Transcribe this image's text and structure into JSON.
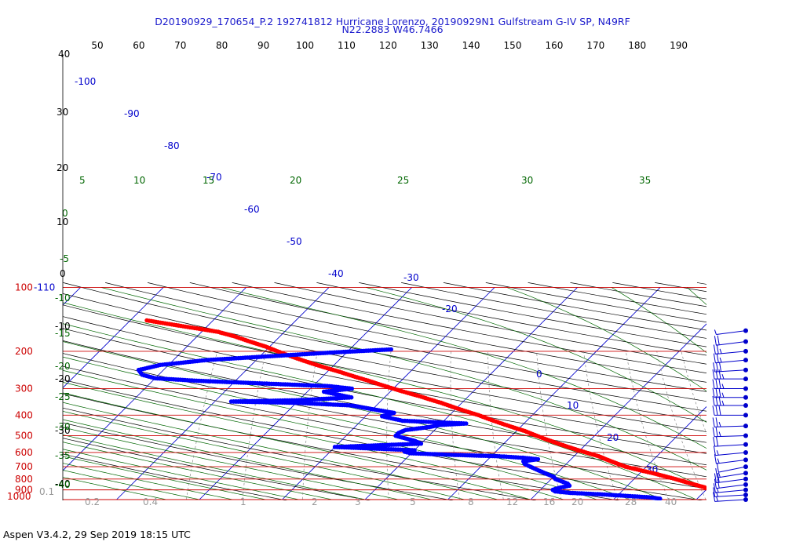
{
  "title_line1": "D20190929_170654_P.2 192741812 Hurricane Lorenzo, 20190929N1 Gulfstream G-IV SP, N49RF",
  "title_line2": "N22.2883 W46.7466",
  "footer": "Aspen V3.4.2, 29 Sep 2019  18:15 UTC",
  "colors": {
    "isobar": "#cc0000",
    "isotherm": "#0000cc",
    "dry_adiabat": "#000000",
    "moist_adiabat": "#006600",
    "mixing_ratio": "#888888",
    "temperature": "#ff0000",
    "dewpoint": "#0000ff",
    "wind": "#0000cc"
  },
  "chart_data": {
    "type": "skew-t log-p",
    "pressure_axis_labels": [
      {
        "p": 100,
        "text": "100"
      },
      {
        "p": 200,
        "text": "200"
      },
      {
        "p": 300,
        "text": "300"
      },
      {
        "p": 400,
        "text": "400"
      },
      {
        "p": 500,
        "text": "500"
      },
      {
        "p": 600,
        "text": "600"
      },
      {
        "p": 700,
        "text": "700"
      },
      {
        "p": 800,
        "text": "800"
      },
      {
        "p": 900,
        "text": "900"
      },
      {
        "p": 1000,
        "text": "1000"
      }
    ],
    "left_temp_labels": [
      "-110",
      "40",
      "30",
      "20",
      "10",
      "0",
      "-10",
      "-20",
      "-30",
      "-40"
    ],
    "top_labels": [
      "50",
      "60",
      "70",
      "80",
      "90",
      "100",
      "110",
      "120",
      "130",
      "140",
      "150",
      "160",
      "170",
      "180",
      "190"
    ],
    "isotherm_labels": [
      "-100",
      "-90",
      "-80",
      "-70",
      "-60",
      "-50",
      "-40",
      "-30",
      "-20",
      "0",
      "10",
      "20",
      "30"
    ],
    "moist_labels_top": [
      "5",
      "10",
      "15",
      "20",
      "25",
      "30",
      "35"
    ],
    "moist_labels_left": [
      "0",
      "-5",
      "-10",
      "-15",
      "-20",
      "-25",
      "-30",
      "-35",
      "-40"
    ],
    "mixing_ratio_labels": [
      "0.1",
      "0.2",
      "0.4",
      "1",
      "2",
      "3",
      "5",
      "8",
      "12",
      "16",
      "20",
      "28",
      "40"
    ],
    "temperature_profile": [
      {
        "p": 1000,
        "t": 27.0
      },
      {
        "p": 990,
        "t": 24.5
      },
      {
        "p": 975,
        "t": 23.5
      },
      {
        "p": 950,
        "t": 23.0
      },
      {
        "p": 925,
        "t": 22.0
      },
      {
        "p": 900,
        "t": 20.5
      },
      {
        "p": 875,
        "t": 19.5
      },
      {
        "p": 850,
        "t": 18.0
      },
      {
        "p": 825,
        "t": 16.5
      },
      {
        "p": 800,
        "t": 15.0
      },
      {
        "p": 775,
        "t": 13.3
      },
      {
        "p": 750,
        "t": 11.5
      },
      {
        "p": 725,
        "t": 9.5
      },
      {
        "p": 700,
        "t": 7.5
      },
      {
        "p": 675,
        "t": 6.0
      },
      {
        "p": 650,
        "t": 4.5
      },
      {
        "p": 625,
        "t": 3.0
      },
      {
        "p": 600,
        "t": 1.0
      },
      {
        "p": 575,
        "t": -1.0
      },
      {
        "p": 550,
        "t": -3.0
      },
      {
        "p": 525,
        "t": -5.0
      },
      {
        "p": 500,
        "t": -7.0
      },
      {
        "p": 475,
        "t": -9.0
      },
      {
        "p": 450,
        "t": -11.5
      },
      {
        "p": 425,
        "t": -14.0
      },
      {
        "p": 400,
        "t": -16.5
      },
      {
        "p": 375,
        "t": -19.5
      },
      {
        "p": 350,
        "t": -22.5
      },
      {
        "p": 325,
        "t": -26.0
      },
      {
        "p": 300,
        "t": -30.0
      },
      {
        "p": 275,
        "t": -34.0
      },
      {
        "p": 250,
        "t": -38.5
      },
      {
        "p": 225,
        "t": -43.5
      },
      {
        "p": 200,
        "t": -48.5
      },
      {
        "p": 190,
        "t": -50.5
      },
      {
        "p": 180,
        "t": -53.0
      },
      {
        "p": 170,
        "t": -55.5
      },
      {
        "p": 162,
        "t": -58.0
      },
      {
        "p": 156,
        "t": -61.0
      },
      {
        "p": 143,
        "t": -68.0
      }
    ],
    "dewpoint_profile": [
      {
        "p": 990,
        "t": 15.5
      },
      {
        "p": 975,
        "t": 14.0
      },
      {
        "p": 960,
        "t": 11.0
      },
      {
        "p": 945,
        "t": 8.0
      },
      {
        "p": 930,
        "t": 4.0
      },
      {
        "p": 915,
        "t": 2.0
      },
      {
        "p": 900,
        "t": 1.5
      },
      {
        "p": 880,
        "t": 2.0
      },
      {
        "p": 860,
        "t": 3.0
      },
      {
        "p": 840,
        "t": 2.5
      },
      {
        "p": 820,
        "t": 1.5
      },
      {
        "p": 800,
        "t": 0.5
      },
      {
        "p": 780,
        "t": 0.0
      },
      {
        "p": 760,
        "t": -1.0
      },
      {
        "p": 740,
        "t": -2.0
      },
      {
        "p": 720,
        "t": -3.0
      },
      {
        "p": 700,
        "t": -4.0
      },
      {
        "p": 680,
        "t": -5.0
      },
      {
        "p": 660,
        "t": -5.5
      },
      {
        "p": 645,
        "t": -4.0
      },
      {
        "p": 635,
        "t": -6.0
      },
      {
        "p": 625,
        "t": -9.0
      },
      {
        "p": 615,
        "t": -15.0
      },
      {
        "p": 605,
        "t": -20.0
      },
      {
        "p": 595,
        "t": -21.0
      },
      {
        "p": 585,
        "t": -20.0
      },
      {
        "p": 575,
        "t": -25.0
      },
      {
        "p": 565,
        "t": -30.0
      },
      {
        "p": 555,
        "t": -25.0
      },
      {
        "p": 545,
        "t": -20.0
      },
      {
        "p": 530,
        "t": -21.0
      },
      {
        "p": 515,
        "t": -22.5
      },
      {
        "p": 500,
        "t": -24.0
      },
      {
        "p": 485,
        "t": -24.0
      },
      {
        "p": 470,
        "t": -23.5
      },
      {
        "p": 455,
        "t": -21.0
      },
      {
        "p": 445,
        "t": -20.0
      },
      {
        "p": 438,
        "t": -17.0
      },
      {
        "p": 425,
        "t": -25.0
      },
      {
        "p": 405,
        "t": -28.0
      },
      {
        "p": 390,
        "t": -27.0
      },
      {
        "p": 375,
        "t": -30.0
      },
      {
        "p": 360,
        "t": -33.0
      },
      {
        "p": 350,
        "t": -40.0
      },
      {
        "p": 345,
        "t": -48.0
      },
      {
        "p": 340,
        "t": -40.0
      },
      {
        "p": 330,
        "t": -34.0
      },
      {
        "p": 310,
        "t": -38.0
      },
      {
        "p": 300,
        "t": -35.0
      },
      {
        "p": 292,
        "t": -38.0
      },
      {
        "p": 285,
        "t": -45.0
      },
      {
        "p": 275,
        "t": -55.0
      },
      {
        "p": 268,
        "t": -60.0
      },
      {
        "p": 258,
        "t": -62.0
      },
      {
        "p": 245,
        "t": -63.0
      },
      {
        "p": 232,
        "t": -61.0
      },
      {
        "p": 220,
        "t": -56.0
      },
      {
        "p": 210,
        "t": -48.0
      },
      {
        "p": 203,
        "t": -42.0
      },
      {
        "p": 196,
        "t": -35.0
      }
    ],
    "wind_barbs": [
      {
        "p": 1000,
        "dir": 100,
        "kt": 15
      },
      {
        "p": 950,
        "dir": 100,
        "kt": 15
      },
      {
        "p": 900,
        "dir": 105,
        "kt": 15
      },
      {
        "p": 850,
        "dir": 110,
        "kt": 20
      },
      {
        "p": 800,
        "dir": 110,
        "kt": 20
      },
      {
        "p": 750,
        "dir": 115,
        "kt": 15
      },
      {
        "p": 700,
        "dir": 120,
        "kt": 10
      },
      {
        "p": 650,
        "dir": 110,
        "kt": 15
      },
      {
        "p": 600,
        "dir": 105,
        "kt": 15
      },
      {
        "p": 550,
        "dir": 100,
        "kt": 20
      },
      {
        "p": 500,
        "dir": 95,
        "kt": 25
      },
      {
        "p": 450,
        "dir": 95,
        "kt": 25
      },
      {
        "p": 400,
        "dir": 90,
        "kt": 30
      },
      {
        "p": 360,
        "dir": 90,
        "kt": 35
      },
      {
        "p": 330,
        "dir": 90,
        "kt": 35
      },
      {
        "p": 300,
        "dir": 90,
        "kt": 35
      },
      {
        "p": 270,
        "dir": 90,
        "kt": 35
      },
      {
        "p": 245,
        "dir": 100,
        "kt": 30
      },
      {
        "p": 220,
        "dir": 105,
        "kt": 25
      },
      {
        "p": 200,
        "dir": 105,
        "kt": 25
      },
      {
        "p": 180,
        "dir": 110,
        "kt": 20
      },
      {
        "p": 160,
        "dir": 110,
        "kt": 5
      }
    ]
  }
}
